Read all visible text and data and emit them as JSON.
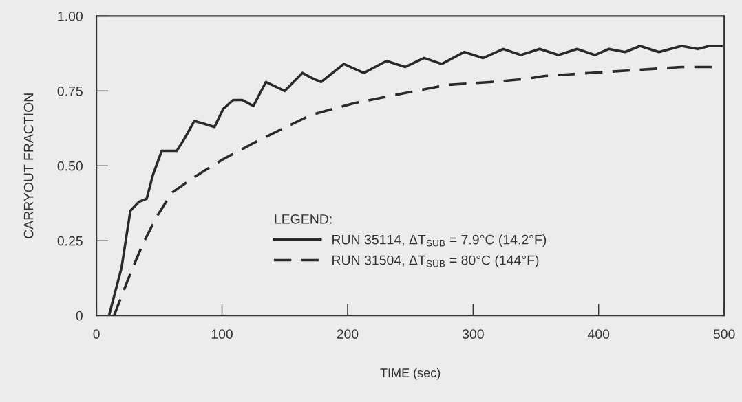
{
  "chart_data": {
    "type": "line",
    "xlabel": "TIME (sec)",
    "ylabel": "CARRYOUT FRACTION",
    "legend_title": "LEGEND:",
    "legend": "bottom",
    "grid": false,
    "xlim": [
      0,
      500
    ],
    "xticks": [
      0,
      100,
      200,
      300,
      400,
      500
    ],
    "ylim": [
      0,
      1.0
    ],
    "yticks": [
      {
        "value": 0,
        "label": "0"
      },
      {
        "value": 0.25,
        "label": "0.25"
      },
      {
        "value": 0.5,
        "label": "0.50"
      },
      {
        "value": 0.75,
        "label": "0.75"
      },
      {
        "value": 1.0,
        "label": "1.00"
      }
    ],
    "series": [
      {
        "name": "RUN 35114, ΔT$_{SUB}$ = 7.9°C (14.2°F)",
        "color": "#2a2a2a",
        "line_style": "solid",
        "x": [
          10,
          20,
          27,
          34,
          40,
          45,
          52,
          58,
          64,
          70,
          78,
          86,
          94,
          101,
          109,
          116,
          125,
          135,
          150,
          164,
          173,
          179,
          197,
          213,
          231,
          246,
          261,
          275,
          293,
          308,
          324,
          338,
          353,
          368,
          383,
          397,
          408,
          421,
          433,
          448,
          466,
          479,
          488,
          498
        ],
        "values": [
          0,
          0.16,
          0.35,
          0.38,
          0.39,
          0.47,
          0.55,
          0.55,
          0.55,
          0.59,
          0.65,
          0.64,
          0.63,
          0.69,
          0.72,
          0.72,
          0.7,
          0.78,
          0.75,
          0.81,
          0.79,
          0.78,
          0.84,
          0.81,
          0.85,
          0.83,
          0.86,
          0.84,
          0.88,
          0.86,
          0.89,
          0.87,
          0.89,
          0.87,
          0.89,
          0.87,
          0.89,
          0.88,
          0.9,
          0.88,
          0.9,
          0.89,
          0.9,
          0.9
        ]
      },
      {
        "name": "RUN 31504, ΔT$_{SUB}$ = 80°C (144°F)",
        "color": "#2a2a2a",
        "line_style": "dashed",
        "x": [
          14,
          27,
          37,
          48,
          60,
          77,
          100,
          127,
          151,
          171,
          206,
          242,
          279,
          315,
          342,
          357,
          393,
          430,
          466,
          498
        ],
        "values": [
          0,
          0.14,
          0.24,
          0.33,
          0.41,
          0.46,
          0.52,
          0.58,
          0.63,
          0.67,
          0.71,
          0.74,
          0.77,
          0.78,
          0.79,
          0.8,
          0.81,
          0.82,
          0.83,
          0.83
        ]
      }
    ]
  }
}
